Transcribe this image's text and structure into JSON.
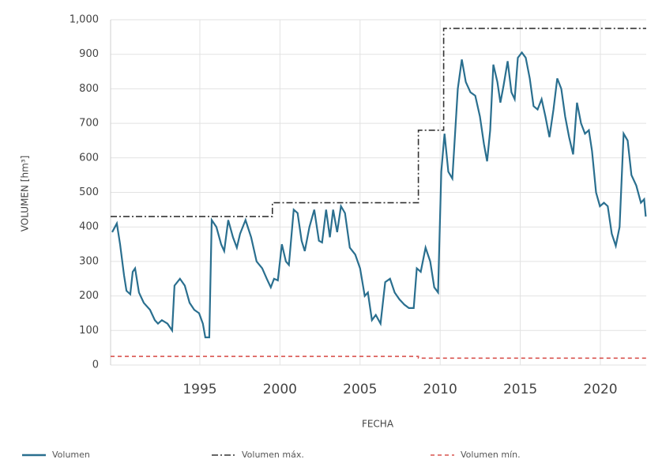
{
  "chart_data": {
    "type": "line",
    "x_label": "FECHA",
    "y_label": "VOLUMEN [hm³]",
    "xlim": [
      1989.43,
      2022.86
    ],
    "xticks": [
      1995,
      2000,
      2005,
      2010,
      2015,
      2020
    ],
    "ylim": [
      0,
      1000
    ],
    "yticks": [
      0,
      100,
      200,
      300,
      400,
      500,
      600,
      700,
      800,
      900,
      {
        "value": 1000,
        "label": "1,000"
      }
    ],
    "grid": true,
    "legend": "bottom",
    "series": [
      {
        "name": "Volumen",
        "color": "#2a6f8f",
        "style": "solid",
        "x": [
          1989.53,
          1989.82,
          1990.02,
          1990.27,
          1990.42,
          1990.66,
          1990.81,
          1990.96,
          1991.2,
          1991.5,
          1991.89,
          1992.19,
          1992.39,
          1992.63,
          1992.98,
          1993.27,
          1993.42,
          1993.76,
          1994.06,
          1994.36,
          1994.65,
          1994.95,
          1995.19,
          1995.34,
          1995.59,
          1995.74,
          1996.03,
          1996.33,
          1996.52,
          1996.77,
          1997.07,
          1997.31,
          1997.51,
          1997.85,
          1998.2,
          1998.54,
          1998.89,
          1999.18,
          1999.43,
          1999.63,
          1999.87,
          2000.12,
          2000.37,
          2000.56,
          2000.86,
          2001.1,
          2001.35,
          2001.55,
          2001.84,
          2002.14,
          2002.43,
          2002.63,
          2002.88,
          2003.12,
          2003.32,
          2003.57,
          2003.81,
          2004.06,
          2004.36,
          2004.7,
          2005.0,
          2005.29,
          2005.49,
          2005.74,
          2005.98,
          2006.28,
          2006.57,
          2006.87,
          2007.16,
          2007.46,
          2007.76,
          2008.05,
          2008.35,
          2008.54,
          2008.79,
          2009.09,
          2009.38,
          2009.63,
          2009.87,
          2010.07,
          2010.27,
          2010.51,
          2010.76,
          2011.1,
          2011.35,
          2011.6,
          2011.89,
          2012.19,
          2012.48,
          2012.73,
          2012.93,
          2013.12,
          2013.32,
          2013.57,
          2013.76,
          2013.96,
          2014.21,
          2014.45,
          2014.65,
          2014.85,
          2015.1,
          2015.34,
          2015.59,
          2015.83,
          2016.08,
          2016.33,
          2016.57,
          2016.82,
          2017.07,
          2017.31,
          2017.56,
          2017.8,
          2018.05,
          2018.3,
          2018.54,
          2018.79,
          2019.04,
          2019.28,
          2019.48,
          2019.73,
          2019.97,
          2020.22,
          2020.46,
          2020.71,
          2020.96,
          2021.2,
          2021.45,
          2021.7,
          2021.94,
          2022.24,
          2022.53,
          2022.73,
          2022.83
        ],
        "values": [
          385,
          410,
          350,
          260,
          215,
          205,
          270,
          280,
          210,
          180,
          160,
          130,
          120,
          130,
          120,
          100,
          230,
          250,
          230,
          180,
          160,
          150,
          120,
          80,
          80,
          420,
          400,
          350,
          330,
          420,
          370,
          340,
          380,
          420,
          370,
          300,
          280,
          250,
          225,
          250,
          245,
          350,
          300,
          290,
          450,
          440,
          360,
          330,
          400,
          450,
          360,
          355,
          450,
          370,
          450,
          385,
          460,
          440,
          340,
          320,
          280,
          200,
          210,
          130,
          145,
          120,
          240,
          250,
          210,
          190,
          175,
          165,
          165,
          280,
          270,
          340,
          300,
          225,
          210,
          560,
          670,
          560,
          540,
          800,
          885,
          820,
          790,
          780,
          720,
          640,
          590,
          680,
          870,
          820,
          760,
          810,
          880,
          790,
          770,
          890,
          905,
          890,
          830,
          750,
          740,
          770,
          720,
          660,
          740,
          830,
          800,
          720,
          660,
          610,
          760,
          700,
          670,
          680,
          620,
          500,
          460,
          470,
          460,
          380,
          345,
          400,
          670,
          650,
          550,
          520,
          470,
          480,
          430
        ]
      },
      {
        "name": "Volumen máx.",
        "color": "#333333",
        "style": "dashdot",
        "x": [
          1989.43,
          1999.53,
          1999.53,
          2008.64,
          2008.64,
          2010.22,
          2010.22,
          2022.86
        ],
        "values": [
          430,
          430,
          470,
          470,
          680,
          680,
          975,
          975
        ]
      },
      {
        "name": "Volumen mín.",
        "color": "#d9534f",
        "style": "dashed",
        "x": [
          1989.43,
          2008.64,
          2008.64,
          2022.86
        ],
        "values": [
          25,
          25,
          20,
          20
        ]
      }
    ]
  }
}
